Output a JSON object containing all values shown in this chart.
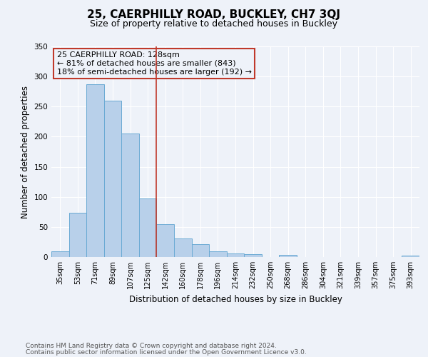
{
  "title": "25, CAERPHILLY ROAD, BUCKLEY, CH7 3QJ",
  "subtitle": "Size of property relative to detached houses in Buckley",
  "xlabel": "Distribution of detached houses by size in Buckley",
  "ylabel": "Number of detached properties",
  "bar_labels": [
    "35sqm",
    "53sqm",
    "71sqm",
    "89sqm",
    "107sqm",
    "125sqm",
    "142sqm",
    "160sqm",
    "178sqm",
    "196sqm",
    "214sqm",
    "232sqm",
    "250sqm",
    "268sqm",
    "286sqm",
    "304sqm",
    "321sqm",
    "339sqm",
    "357sqm",
    "375sqm",
    "393sqm"
  ],
  "bar_values": [
    10,
    74,
    287,
    260,
    205,
    97,
    54,
    31,
    21,
    10,
    6,
    5,
    0,
    4,
    0,
    0,
    0,
    0,
    0,
    0,
    2
  ],
  "bar_color": "#b8d0ea",
  "bar_edge_color": "#6aaad4",
  "ylim": [
    0,
    350
  ],
  "yticks": [
    0,
    50,
    100,
    150,
    200,
    250,
    300,
    350
  ],
  "vline_x": 5.5,
  "vline_color": "#c0392b",
  "annotation_title": "25 CAERPHILLY ROAD: 128sqm",
  "annotation_line1": "← 81% of detached houses are smaller (843)",
  "annotation_line2": "18% of semi-detached houses are larger (192) →",
  "annotation_box_color": "#c0392b",
  "footer1": "Contains HM Land Registry data © Crown copyright and database right 2024.",
  "footer2": "Contains public sector information licensed under the Open Government Licence v3.0.",
  "background_color": "#eef2f9",
  "grid_color": "#ffffff",
  "title_fontsize": 11,
  "subtitle_fontsize": 9,
  "axis_label_fontsize": 8.5,
  "tick_fontsize": 7,
  "annotation_fontsize": 8,
  "footer_fontsize": 6.5
}
